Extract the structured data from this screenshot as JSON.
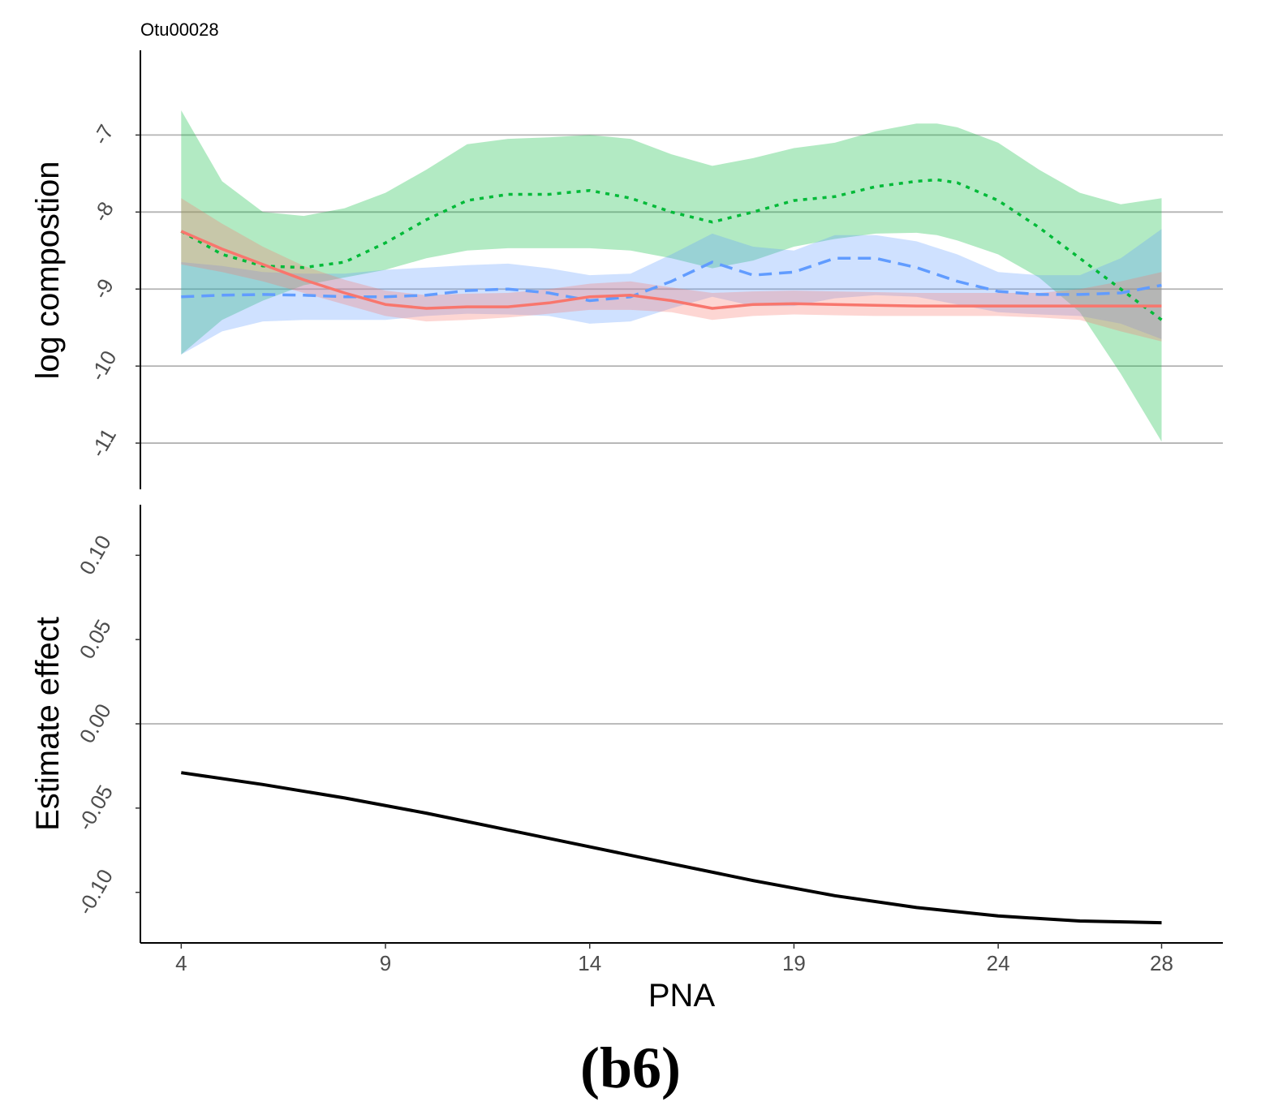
{
  "chart_data": [
    {
      "type": "line",
      "title": "Otu00028",
      "xlabel": "",
      "ylabel": "log compostion",
      "xlim": [
        3,
        29.5
      ],
      "ylim": [
        -11.6,
        -5.9
      ],
      "xticks": [
        4,
        9,
        14,
        19,
        24,
        28
      ],
      "yticks": [
        -11,
        -10,
        -9,
        -8,
        -7
      ],
      "ytick_labels": [
        "-11",
        "-10",
        "-9",
        "-8",
        "-7"
      ],
      "grid": "horizontal",
      "series": [
        {
          "name": "green",
          "color": "#00BA38",
          "dash": "dotted",
          "x": [
            4,
            5,
            6,
            7,
            8,
            9,
            10,
            11,
            12,
            13,
            14,
            15,
            16,
            17,
            18,
            19,
            20,
            21,
            22,
            22.5,
            23,
            24,
            25,
            26,
            27,
            28
          ],
          "y": [
            -8.25,
            -8.55,
            -8.7,
            -8.72,
            -8.65,
            -8.4,
            -8.1,
            -7.85,
            -7.77,
            -7.77,
            -7.72,
            -7.82,
            -8.0,
            -8.13,
            -8.0,
            -7.85,
            -7.8,
            -7.67,
            -7.6,
            -7.58,
            -7.62,
            -7.85,
            -8.2,
            -8.6,
            -9.0,
            -9.4
          ],
          "lower": [
            -9.85,
            -9.4,
            -9.15,
            -8.95,
            -8.85,
            -8.75,
            -8.6,
            -8.5,
            -8.47,
            -8.47,
            -8.47,
            -8.5,
            -8.6,
            -8.73,
            -8.63,
            -8.45,
            -8.35,
            -8.28,
            -8.27,
            -8.3,
            -8.37,
            -8.55,
            -8.85,
            -9.3,
            -10.1,
            -10.98
          ],
          "upper": [
            -6.68,
            -7.6,
            -8.0,
            -8.05,
            -7.95,
            -7.75,
            -7.45,
            -7.12,
            -7.05,
            -7.03,
            -7.0,
            -7.05,
            -7.25,
            -7.4,
            -7.3,
            -7.17,
            -7.1,
            -6.95,
            -6.85,
            -6.85,
            -6.9,
            -7.1,
            -7.45,
            -7.75,
            -7.9,
            -7.82
          ]
        },
        {
          "name": "blue",
          "color": "#619CFF",
          "dash": "dashed",
          "x": [
            4,
            5,
            6,
            7,
            8,
            9,
            10,
            11,
            12,
            13,
            14,
            15,
            16,
            17,
            18,
            19,
            20,
            21,
            22,
            23,
            24,
            25,
            26,
            27,
            28
          ],
          "y": [
            -9.1,
            -9.08,
            -9.07,
            -9.08,
            -9.1,
            -9.1,
            -9.08,
            -9.02,
            -9.0,
            -9.05,
            -9.15,
            -9.1,
            -8.9,
            -8.65,
            -8.82,
            -8.78,
            -8.6,
            -8.6,
            -8.72,
            -8.9,
            -9.03,
            -9.07,
            -9.07,
            -9.05,
            -8.95
          ],
          "lower": [
            -9.85,
            -9.55,
            -9.42,
            -9.4,
            -9.4,
            -9.4,
            -9.35,
            -9.32,
            -9.33,
            -9.35,
            -9.45,
            -9.42,
            -9.25,
            -9.1,
            -9.22,
            -9.22,
            -9.12,
            -9.08,
            -9.1,
            -9.2,
            -9.3,
            -9.33,
            -9.35,
            -9.45,
            -9.65
          ],
          "upper": [
            -8.65,
            -8.7,
            -8.78,
            -8.8,
            -8.8,
            -8.75,
            -8.72,
            -8.69,
            -8.67,
            -8.73,
            -8.82,
            -8.8,
            -8.55,
            -8.28,
            -8.45,
            -8.5,
            -8.3,
            -8.3,
            -8.38,
            -8.55,
            -8.78,
            -8.82,
            -8.82,
            -8.6,
            -8.22
          ]
        },
        {
          "name": "red",
          "color": "#F8766D",
          "dash": "solid",
          "x": [
            4,
            5,
            6,
            7,
            8,
            9,
            10,
            11,
            12,
            13,
            14,
            15,
            16,
            17,
            18,
            19,
            20,
            21,
            22,
            23,
            24,
            25,
            26,
            27,
            28
          ],
          "y": [
            -8.25,
            -8.48,
            -8.68,
            -8.88,
            -9.05,
            -9.2,
            -9.25,
            -9.23,
            -9.23,
            -9.18,
            -9.1,
            -9.08,
            -9.15,
            -9.25,
            -9.2,
            -9.19,
            -9.2,
            -9.21,
            -9.22,
            -9.22,
            -9.22,
            -9.22,
            -9.22,
            -9.22,
            -9.22
          ],
          "lower": [
            -8.68,
            -8.78,
            -8.9,
            -9.05,
            -9.2,
            -9.35,
            -9.42,
            -9.4,
            -9.37,
            -9.32,
            -9.27,
            -9.27,
            -9.3,
            -9.4,
            -9.35,
            -9.33,
            -9.34,
            -9.35,
            -9.35,
            -9.35,
            -9.35,
            -9.37,
            -9.4,
            -9.55,
            -9.68
          ],
          "upper": [
            -7.82,
            -8.15,
            -8.45,
            -8.7,
            -8.88,
            -9.02,
            -9.08,
            -9.06,
            -9.05,
            -9.0,
            -8.93,
            -8.9,
            -8.98,
            -9.05,
            -9.03,
            -9.02,
            -9.03,
            -9.04,
            -9.05,
            -9.05,
            -9.05,
            -9.05,
            -9.0,
            -8.9,
            -8.78
          ]
        }
      ]
    },
    {
      "type": "line",
      "title": "",
      "xlabel": "PNA",
      "ylabel": "Estimate effect",
      "xlim": [
        3,
        29.5
      ],
      "ylim": [
        -0.13,
        0.13
      ],
      "xticks": [
        4,
        9,
        14,
        19,
        24,
        28
      ],
      "xtick_labels": [
        "4",
        "9",
        "14",
        "19",
        "24",
        "28"
      ],
      "yticks": [
        -0.1,
        -0.05,
        0.0,
        0.05,
        0.1
      ],
      "ytick_labels": [
        "-0.10",
        "-0.05",
        "0.00",
        "0.05",
        "0.10"
      ],
      "grid": "zero-line",
      "series": [
        {
          "name": "estimate",
          "color": "#000000",
          "dash": "solid",
          "x": [
            4,
            6,
            8,
            10,
            12,
            14,
            16,
            18,
            20,
            22,
            24,
            26,
            28
          ],
          "y": [
            -0.029,
            -0.036,
            -0.044,
            -0.053,
            -0.063,
            -0.073,
            -0.083,
            -0.093,
            -0.102,
            -0.109,
            -0.114,
            -0.117,
            -0.118
          ]
        }
      ]
    }
  ],
  "caption": "(b6)"
}
